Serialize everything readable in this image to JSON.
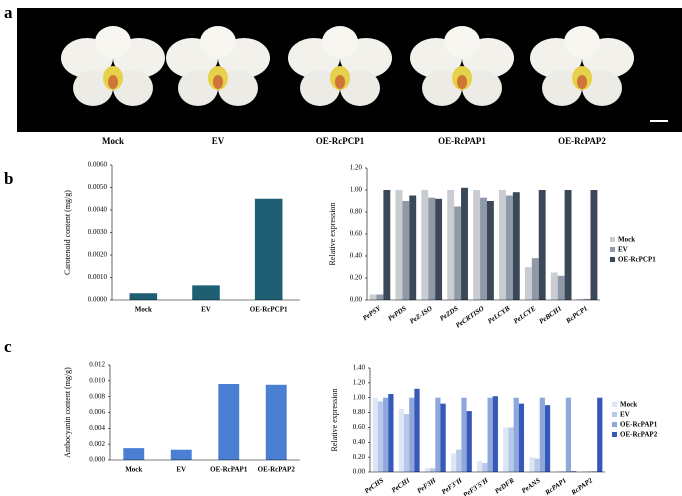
{
  "panel_labels": [
    "a",
    "b",
    "c"
  ],
  "flower_captions": [
    "Mock",
    "EV",
    "OE-RcPCP1",
    "OE-RcPAP1",
    "OE-RcPAP2"
  ],
  "chart_data": [
    {
      "type": "bar",
      "y_label": "Carotenoid content (mg/g)",
      "categories": [
        "Mock",
        "EV",
        "OE-RcPCP1"
      ],
      "values": [
        0.0003,
        0.00065,
        0.0045
      ],
      "color": "#1f5f73",
      "ylim": [
        0,
        0.006
      ],
      "yticks": [
        {
          "value": 0,
          "label": "0.0000"
        },
        {
          "value": 0.001,
          "label": "0.0010"
        },
        {
          "value": 0.002,
          "label": "0.0020"
        },
        {
          "value": 0.003,
          "label": "0.0030"
        },
        {
          "value": 0.004,
          "label": "0.0040"
        },
        {
          "value": 0.005,
          "label": "0.0050"
        },
        {
          "value": 0.006,
          "label": "0.0060"
        }
      ]
    },
    {
      "type": "bar",
      "y_label": "Relative expression",
      "categories": [
        "PePSY",
        "PePDS",
        "PeZ-ISO",
        "PeZDS",
        "PeCRTISO",
        "PeLCYB",
        "PeLCYE",
        "PeBCH1",
        "RcPCP1"
      ],
      "series": [
        {
          "name": "Mock",
          "color": "#c9cdd2",
          "values": [
            0.05,
            1.0,
            1.0,
            1.0,
            1.0,
            1.0,
            0.3,
            0.25,
            0.01
          ]
        },
        {
          "name": "EV",
          "color": "#8e9aa8",
          "values": [
            0.05,
            0.9,
            0.93,
            0.85,
            0.93,
            0.95,
            0.38,
            0.22,
            0.01
          ]
        },
        {
          "name": "OE-RcPCP1",
          "color": "#3a4858",
          "values": [
            1.0,
            0.95,
            0.92,
            1.02,
            0.9,
            0.98,
            1.0,
            1.0,
            1.0
          ]
        }
      ],
      "ylim": [
        0,
        1.2
      ],
      "yticks": [
        {
          "value": 0,
          "label": "0.00"
        },
        {
          "value": 0.2,
          "label": "0.20"
        },
        {
          "value": 0.4,
          "label": "0.40"
        },
        {
          "value": 0.6,
          "label": "0.60"
        },
        {
          "value": 0.8,
          "label": "0.80"
        },
        {
          "value": 1.0,
          "label": "1.00"
        },
        {
          "value": 1.2,
          "label": "1.20"
        }
      ]
    },
    {
      "type": "bar",
      "y_label": "Anthocyanin content (mg/g)",
      "categories": [
        "Mock",
        "EV",
        "OE-RcPAP1",
        "OE-RcPAP2"
      ],
      "values": [
        0.0015,
        0.0013,
        0.0096,
        0.0095
      ],
      "color": "#4a7fd4",
      "ylim": [
        0,
        0.012
      ],
      "yticks": [
        {
          "value": 0,
          "label": "0.000"
        },
        {
          "value": 0.002,
          "label": "0.002"
        },
        {
          "value": 0.004,
          "label": "0.004"
        },
        {
          "value": 0.006,
          "label": "0.006"
        },
        {
          "value": 0.008,
          "label": "0.008"
        },
        {
          "value": 0.01,
          "label": "0.010"
        },
        {
          "value": 0.012,
          "label": "0.012"
        }
      ]
    },
    {
      "type": "bar",
      "y_label": "Relative expression",
      "categories": [
        "PeCHS",
        "PeCHI",
        "PeF3H",
        "PeF3'H",
        "PeF3'5'H",
        "PeDFR",
        "PeANS",
        "RcPAP1",
        "RcPAP2"
      ],
      "series": [
        {
          "name": "Mock",
          "color": "#dde6f5",
          "values": [
            1.0,
            0.85,
            0.05,
            0.25,
            0.15,
            0.6,
            0.2,
            0.01,
            0.01
          ]
        },
        {
          "name": "EV",
          "color": "#b8c8ea",
          "values": [
            0.95,
            0.78,
            0.05,
            0.3,
            0.12,
            0.6,
            0.18,
            0.01,
            0.01
          ]
        },
        {
          "name": "OE-RcPAP1",
          "color": "#8fa8dc",
          "values": [
            1.0,
            1.0,
            1.0,
            1.0,
            1.0,
            1.0,
            1.0,
            1.0,
            0.01
          ]
        },
        {
          "name": "OE-RcPAP2",
          "color": "#3658b8",
          "values": [
            1.05,
            1.12,
            0.92,
            0.82,
            1.02,
            0.92,
            0.9,
            0.01,
            1.0
          ]
        }
      ],
      "ylim": [
        0,
        1.4
      ],
      "yticks": [
        {
          "value": 0,
          "label": "0.00"
        },
        {
          "value": 0.2,
          "label": "0.20"
        },
        {
          "value": 0.4,
          "label": "0.40"
        },
        {
          "value": 0.6,
          "label": "0.60"
        },
        {
          "value": 0.8,
          "label": "0.80"
        },
        {
          "value": 1.0,
          "label": "1.00"
        },
        {
          "value": 1.2,
          "label": "1.20"
        },
        {
          "value": 1.4,
          "label": "1.40"
        }
      ]
    }
  ]
}
